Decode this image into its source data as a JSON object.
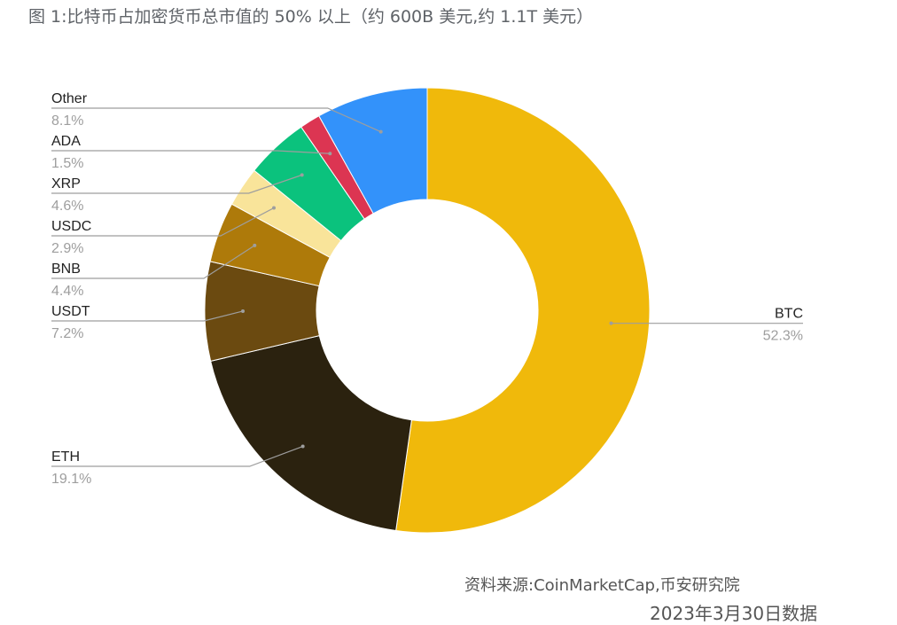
{
  "title": "图 1:比特币占加密货币总市值的 50% 以上（约 600B 美元,约 1.1T 美元）",
  "source": "资料来源:CoinMarketCap,币安研究院",
  "date_note": "2023年3月30日数据",
  "chart_data": {
    "type": "pie",
    "donut": true,
    "title": "图 1:比特币占加密货币总市值的 50% 以上（约 600B 美元,约 1.1T 美元）",
    "slices": [
      {
        "label": "BTC",
        "value": 52.3,
        "display": "52.3%",
        "color": "#F0B90B"
      },
      {
        "label": "ETH",
        "value": 19.1,
        "display": "19.1%",
        "color": "#2B220F"
      },
      {
        "label": "USDT",
        "value": 7.2,
        "display": "7.2%",
        "color": "#6B4A10"
      },
      {
        "label": "BNB",
        "value": 4.4,
        "display": "4.4%",
        "color": "#AE7A0A"
      },
      {
        "label": "USDC",
        "value": 2.9,
        "display": "2.9%",
        "color": "#F9E49A"
      },
      {
        "label": "XRP",
        "value": 4.6,
        "display": "4.6%",
        "color": "#0BC27D"
      },
      {
        "label": "ADA",
        "value": 1.5,
        "display": "1.5%",
        "color": "#DC3552"
      },
      {
        "label": "Other",
        "value": 8.1,
        "display": "8.1%",
        "color": "#3392FA"
      }
    ],
    "legend": "none",
    "labels": "outside-with-leader-lines"
  }
}
